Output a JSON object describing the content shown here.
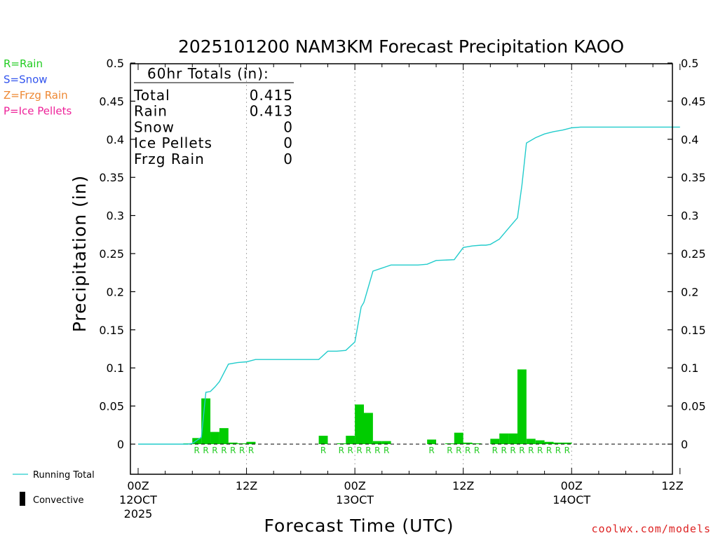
{
  "chart_data": {
    "type": "bar",
    "title": "2025101200 NAM3KM Forecast Precipitation KAOO",
    "xlabel": "Forecast Time (UTC)",
    "ylabel": "Precipitation (in)",
    "ylim": [
      -0.04,
      0.5
    ],
    "xlim_hours": [
      0,
      60
    ],
    "yticks": [
      "0.5",
      "0.45",
      "0.4",
      "0.35",
      "0.3",
      "0.25",
      "0.2",
      "0.15",
      "0.1",
      "0.05",
      "0"
    ],
    "xticks": [
      {
        "hour": 0,
        "lines": [
          "00Z",
          "12OCT",
          "2025"
        ]
      },
      {
        "hour": 12,
        "lines": [
          "12Z"
        ]
      },
      {
        "hour": 24,
        "lines": [
          "00Z",
          "13OCT"
        ]
      },
      {
        "hour": 36,
        "lines": [
          "12Z"
        ]
      },
      {
        "hour": 48,
        "lines": [
          "00Z",
          "14OCT"
        ]
      },
      {
        "hour": 60,
        "lines": [
          "12Z"
        ]
      }
    ],
    "gridlines_hours": [
      12,
      24,
      36,
      48
    ],
    "legend": [
      {
        "text": "R=Rain",
        "color": "#22cc22"
      },
      {
        "text": "S=Snow",
        "color": "#3355ee"
      },
      {
        "text": "Z=Frzg Rain",
        "color": "#ee8833"
      },
      {
        "text": "P=Ice Pellets",
        "color": "#ee2299"
      }
    ],
    "series_legend": {
      "running_total": "Running Total",
      "convective": "Convective"
    },
    "totals_box": {
      "heading": "60hr Totals (in):",
      "rows": [
        {
          "label": "Total",
          "value": "0.415"
        },
        {
          "label": "Rain",
          "value": "0.413"
        },
        {
          "label": "Snow",
          "value": "0"
        },
        {
          "label": "Ice Pellets",
          "value": "0"
        },
        {
          "label": "Frzg Rain",
          "value": "0"
        }
      ]
    },
    "hourly_precip": [
      {
        "hour": 6,
        "value": 0.001,
        "type": ""
      },
      {
        "hour": 7,
        "value": 0.008,
        "type": "R"
      },
      {
        "hour": 8,
        "value": 0.06,
        "type": "R"
      },
      {
        "hour": 9,
        "value": 0.016,
        "type": "R"
      },
      {
        "hour": 10,
        "value": 0.021,
        "type": "R"
      },
      {
        "hour": 11,
        "value": 0.002,
        "type": "R"
      },
      {
        "hour": 12,
        "value": 0.001,
        "type": "R"
      },
      {
        "hour": 13,
        "value": 0.003,
        "type": "R"
      },
      {
        "hour": 21,
        "value": 0.011,
        "type": "R"
      },
      {
        "hour": 23,
        "value": 0.001,
        "type": "R"
      },
      {
        "hour": 24,
        "value": 0.011,
        "type": "R"
      },
      {
        "hour": 25,
        "value": 0.052,
        "type": "R"
      },
      {
        "hour": 26,
        "value": 0.041,
        "type": "R"
      },
      {
        "hour": 27,
        "value": 0.004,
        "type": "R"
      },
      {
        "hour": 28,
        "value": 0.004,
        "type": "R"
      },
      {
        "hour": 33,
        "value": 0.006,
        "type": "R"
      },
      {
        "hour": 35,
        "value": 0.001,
        "type": "R"
      },
      {
        "hour": 36,
        "value": 0.015,
        "type": "R"
      },
      {
        "hour": 37,
        "value": 0.002,
        "type": "R"
      },
      {
        "hour": 38,
        "value": 0.001,
        "type": "R"
      },
      {
        "hour": 40,
        "value": 0.007,
        "type": "R"
      },
      {
        "hour": 41,
        "value": 0.014,
        "type": "R"
      },
      {
        "hour": 42,
        "value": 0.014,
        "type": "R"
      },
      {
        "hour": 43,
        "value": 0.098,
        "type": "R"
      },
      {
        "hour": 44,
        "value": 0.007,
        "type": "R"
      },
      {
        "hour": 45,
        "value": 0.005,
        "type": "R"
      },
      {
        "hour": 46,
        "value": 0.003,
        "type": "R"
      },
      {
        "hour": 47,
        "value": 0.002,
        "type": "R"
      },
      {
        "hour": 48,
        "value": 0.002,
        "type": "R"
      }
    ],
    "running_total": [
      [
        0,
        0
      ],
      [
        5.5,
        0
      ],
      [
        6,
        0.001
      ],
      [
        7,
        0.009
      ],
      [
        7.5,
        0.068
      ],
      [
        8,
        0.069
      ],
      [
        8.5,
        0.075
      ],
      [
        9,
        0.082
      ],
      [
        10,
        0.105
      ],
      [
        11,
        0.107
      ],
      [
        12,
        0.108
      ],
      [
        13,
        0.111
      ],
      [
        20,
        0.111
      ],
      [
        21,
        0.122
      ],
      [
        22,
        0.122
      ],
      [
        23,
        0.123
      ],
      [
        24,
        0.134
      ],
      [
        24.7,
        0.18
      ],
      [
        25,
        0.186
      ],
      [
        26,
        0.227
      ],
      [
        27,
        0.231
      ],
      [
        28,
        0.235
      ],
      [
        31,
        0.235
      ],
      [
        32,
        0.236
      ],
      [
        33,
        0.241
      ],
      [
        35,
        0.242
      ],
      [
        36,
        0.258
      ],
      [
        37,
        0.26
      ],
      [
        38,
        0.261
      ],
      [
        38.5,
        0.261
      ],
      [
        39,
        0.262
      ],
      [
        40,
        0.269
      ],
      [
        41,
        0.283
      ],
      [
        42,
        0.297
      ],
      [
        42.5,
        0.34
      ],
      [
        43,
        0.395
      ],
      [
        44,
        0.402
      ],
      [
        45,
        0.407
      ],
      [
        46,
        0.41
      ],
      [
        47,
        0.412
      ],
      [
        48,
        0.415
      ],
      [
        49,
        0.416
      ],
      [
        60,
        0.416
      ]
    ],
    "colors": {
      "rain_bar": "#00cc00",
      "running_total": "#22cccc",
      "rain_label": "#22cc22",
      "axis": "#000000",
      "grid": "#aaaaaa"
    },
    "grid": "vertical dotted",
    "footer": "coolwx.com/models",
    "footer_color": "#dd2222"
  }
}
